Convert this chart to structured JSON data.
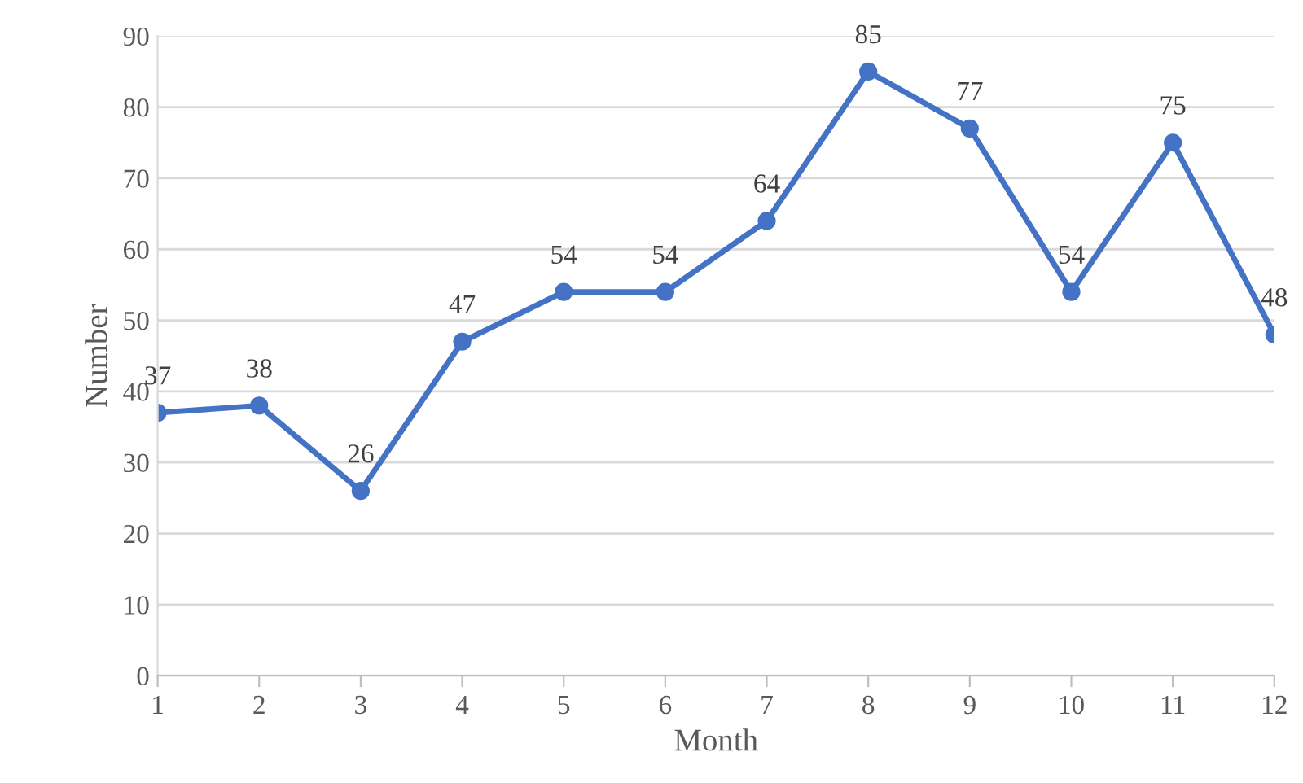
{
  "chart_data": {
    "type": "line",
    "xlabel": "Month",
    "ylabel": "Number",
    "x": [
      1,
      2,
      3,
      4,
      5,
      6,
      7,
      8,
      9,
      10,
      11,
      12
    ],
    "series": [
      {
        "color": "#4472c4",
        "values": [
          37,
          38,
          26,
          47,
          54,
          54,
          64,
          85,
          77,
          54,
          75,
          48
        ]
      }
    ],
    "xlim": [
      1,
      12
    ],
    "xticks": [
      1,
      2,
      3,
      4,
      5,
      6,
      7,
      8,
      9,
      10,
      11,
      12
    ],
    "ylim": [
      0,
      90
    ],
    "yticks": [
      0,
      10,
      20,
      30,
      40,
      50,
      60,
      70,
      80,
      90
    ],
    "grid": "y",
    "marker": "circle",
    "line_style": "solid",
    "data_labels": true
  }
}
